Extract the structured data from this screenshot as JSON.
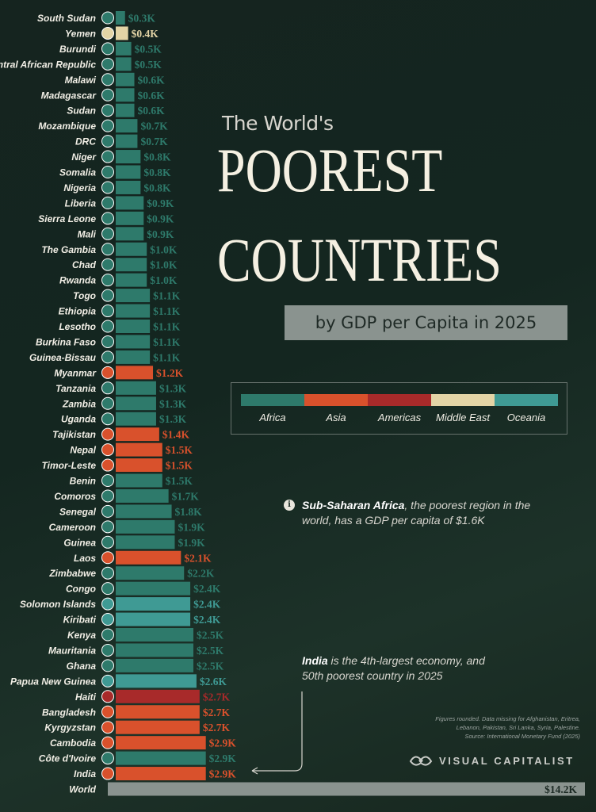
{
  "header": {
    "subtitle": "The World's",
    "title_line1": "POOREST",
    "title_line2": "COUNTRIES",
    "tagline": "by GDP per Capita in 2025"
  },
  "legend": [
    {
      "label": "Africa",
      "color": "#2e7a6b"
    },
    {
      "label": "Asia",
      "color": "#d9512c"
    },
    {
      "label": "Americas",
      "color": "#a82a2a"
    },
    {
      "label": "Middle East",
      "color": "#e3d4a6"
    },
    {
      "label": "Oceania",
      "color": "#3f9a94"
    }
  ],
  "notes": {
    "note1_bold": "Sub-Saharan Africa",
    "note1_rest": ", the poorest region in the world, has a GDP per capita of $1.6K",
    "note2_bold": "India",
    "note2_rest": " is the 4th-largest economy, and 50th poorest country in 2025"
  },
  "source_lines": [
    "Figures rounded. Data missing for Afghanistan, Eritrea,",
    "Lebanon, Pakistan, Sri Lanka, Syria, Palestine.",
    "Source: International Monetary Fund (2025)"
  ],
  "brand": "VISUAL CAPITALIST",
  "colors": {
    "Africa": "#2e7a6b",
    "Asia": "#d9512c",
    "Americas": "#a82a2a",
    "Middle East": "#e3d4a6",
    "Oceania": "#3f9a94",
    "World": "#8a938f"
  },
  "chart_data": {
    "type": "bar",
    "orientation": "horizontal",
    "title": "The World's POOREST COUNTRIES",
    "subtitle": "by GDP per Capita in 2025",
    "unit": "GDP per capita (USD thousands)",
    "bars": [
      {
        "country": "South Sudan",
        "value": 0.3,
        "label": "$0.3K",
        "region": "Africa"
      },
      {
        "country": "Yemen",
        "value": 0.4,
        "label": "$0.4K",
        "region": "Middle East"
      },
      {
        "country": "Burundi",
        "value": 0.5,
        "label": "$0.5K",
        "region": "Africa"
      },
      {
        "country": "Central African Republic",
        "value": 0.5,
        "label": "$0.5K",
        "region": "Africa"
      },
      {
        "country": "Malawi",
        "value": 0.6,
        "label": "$0.6K",
        "region": "Africa"
      },
      {
        "country": "Madagascar",
        "value": 0.6,
        "label": "$0.6K",
        "region": "Africa"
      },
      {
        "country": "Sudan",
        "value": 0.6,
        "label": "$0.6K",
        "region": "Africa"
      },
      {
        "country": "Mozambique",
        "value": 0.7,
        "label": "$0.7K",
        "region": "Africa"
      },
      {
        "country": "DRC",
        "value": 0.7,
        "label": "$0.7K",
        "region": "Africa"
      },
      {
        "country": "Niger",
        "value": 0.8,
        "label": "$0.8K",
        "region": "Africa"
      },
      {
        "country": "Somalia",
        "value": 0.8,
        "label": "$0.8K",
        "region": "Africa"
      },
      {
        "country": "Nigeria",
        "value": 0.8,
        "label": "$0.8K",
        "region": "Africa"
      },
      {
        "country": "Liberia",
        "value": 0.9,
        "label": "$0.9K",
        "region": "Africa"
      },
      {
        "country": "Sierra Leone",
        "value": 0.9,
        "label": "$0.9K",
        "region": "Africa"
      },
      {
        "country": "Mali",
        "value": 0.9,
        "label": "$0.9K",
        "region": "Africa"
      },
      {
        "country": "The Gambia",
        "value": 1.0,
        "label": "$1.0K",
        "region": "Africa"
      },
      {
        "country": "Chad",
        "value": 1.0,
        "label": "$1.0K",
        "region": "Africa"
      },
      {
        "country": "Rwanda",
        "value": 1.0,
        "label": "$1.0K",
        "region": "Africa"
      },
      {
        "country": "Togo",
        "value": 1.1,
        "label": "$1.1K",
        "region": "Africa"
      },
      {
        "country": "Ethiopia",
        "value": 1.1,
        "label": "$1.1K",
        "region": "Africa"
      },
      {
        "country": "Lesotho",
        "value": 1.1,
        "label": "$1.1K",
        "region": "Africa"
      },
      {
        "country": "Burkina Faso",
        "value": 1.1,
        "label": "$1.1K",
        "region": "Africa"
      },
      {
        "country": "Guinea-Bissau",
        "value": 1.1,
        "label": "$1.1K",
        "region": "Africa"
      },
      {
        "country": "Myanmar",
        "value": 1.2,
        "label": "$1.2K",
        "region": "Asia"
      },
      {
        "country": "Tanzania",
        "value": 1.3,
        "label": "$1.3K",
        "region": "Africa"
      },
      {
        "country": "Zambia",
        "value": 1.3,
        "label": "$1.3K",
        "region": "Africa"
      },
      {
        "country": "Uganda",
        "value": 1.3,
        "label": "$1.3K",
        "region": "Africa"
      },
      {
        "country": "Tajikistan",
        "value": 1.4,
        "label": "$1.4K",
        "region": "Asia"
      },
      {
        "country": "Nepal",
        "value": 1.5,
        "label": "$1.5K",
        "region": "Asia"
      },
      {
        "country": "Timor-Leste",
        "value": 1.5,
        "label": "$1.5K",
        "region": "Asia"
      },
      {
        "country": "Benin",
        "value": 1.5,
        "label": "$1.5K",
        "region": "Africa"
      },
      {
        "country": "Comoros",
        "value": 1.7,
        "label": "$1.7K",
        "region": "Africa"
      },
      {
        "country": "Senegal",
        "value": 1.8,
        "label": "$1.8K",
        "region": "Africa"
      },
      {
        "country": "Cameroon",
        "value": 1.9,
        "label": "$1.9K",
        "region": "Africa"
      },
      {
        "country": "Guinea",
        "value": 1.9,
        "label": "$1.9K",
        "region": "Africa"
      },
      {
        "country": "Laos",
        "value": 2.1,
        "label": "$2.1K",
        "region": "Asia"
      },
      {
        "country": "Zimbabwe",
        "value": 2.2,
        "label": "$2.2K",
        "region": "Africa"
      },
      {
        "country": "Congo",
        "value": 2.4,
        "label": "$2.4K",
        "region": "Africa"
      },
      {
        "country": "Solomon Islands",
        "value": 2.4,
        "label": "$2.4K",
        "region": "Oceania"
      },
      {
        "country": "Kiribati",
        "value": 2.4,
        "label": "$2.4K",
        "region": "Oceania"
      },
      {
        "country": "Kenya",
        "value": 2.5,
        "label": "$2.5K",
        "region": "Africa"
      },
      {
        "country": "Mauritania",
        "value": 2.5,
        "label": "$2.5K",
        "region": "Africa"
      },
      {
        "country": "Ghana",
        "value": 2.5,
        "label": "$2.5K",
        "region": "Africa"
      },
      {
        "country": "Papua New Guinea",
        "value": 2.6,
        "label": "$2.6K",
        "region": "Oceania"
      },
      {
        "country": "Haiti",
        "value": 2.7,
        "label": "$2.7K",
        "region": "Americas"
      },
      {
        "country": "Bangladesh",
        "value": 2.7,
        "label": "$2.7K",
        "region": "Asia"
      },
      {
        "country": "Kyrgyzstan",
        "value": 2.7,
        "label": "$2.7K",
        "region": "Asia"
      },
      {
        "country": "Cambodia",
        "value": 2.9,
        "label": "$2.9K",
        "region": "Asia"
      },
      {
        "country": "Côte d'Ivoire",
        "value": 2.9,
        "label": "$2.9K",
        "region": "Africa"
      },
      {
        "country": "India",
        "value": 2.9,
        "label": "$2.9K",
        "region": "Asia"
      },
      {
        "country": "World",
        "value": 14.2,
        "label": "$14.2K",
        "region": "World"
      }
    ]
  }
}
